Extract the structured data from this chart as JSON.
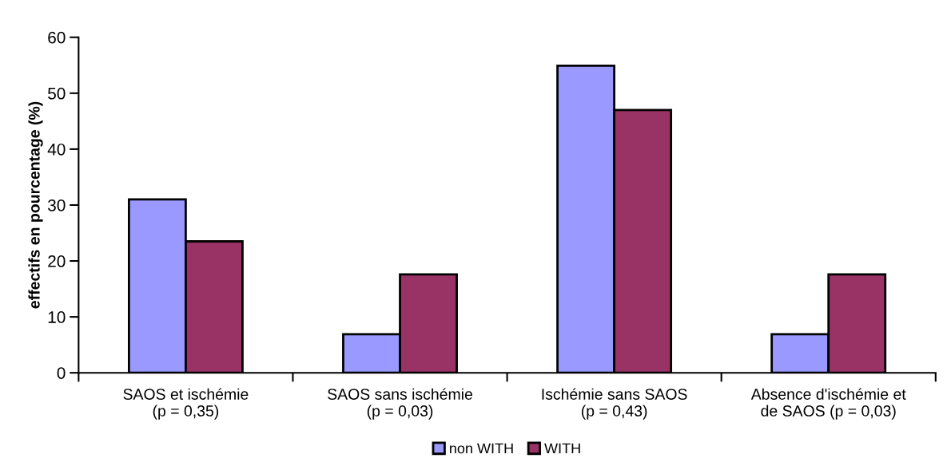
{
  "chart_data": {
    "type": "bar",
    "ylabel": "effectifs en pourcentage (%)",
    "categories": [
      "SAOS et ischémie\n(p = 0,35)",
      "SAOS sans ischémie\n(p = 0,03)",
      "Ischémie sans SAOS\n(p = 0,43)",
      "Absence d'ischémie et\nde SAOS (p = 0,03)"
    ],
    "series": [
      {
        "name": "non WITH",
        "color": "#9999ff",
        "values": [
          31.0,
          6.9,
          54.9,
          6.9
        ]
      },
      {
        "name": "WITH",
        "color": "#993366",
        "values": [
          23.5,
          17.6,
          47.0,
          17.6
        ]
      }
    ],
    "ylim": [
      0,
      60
    ],
    "yticks": [
      0,
      10,
      20,
      30,
      40,
      50,
      60
    ],
    "grid": false,
    "legend": "bottom"
  }
}
